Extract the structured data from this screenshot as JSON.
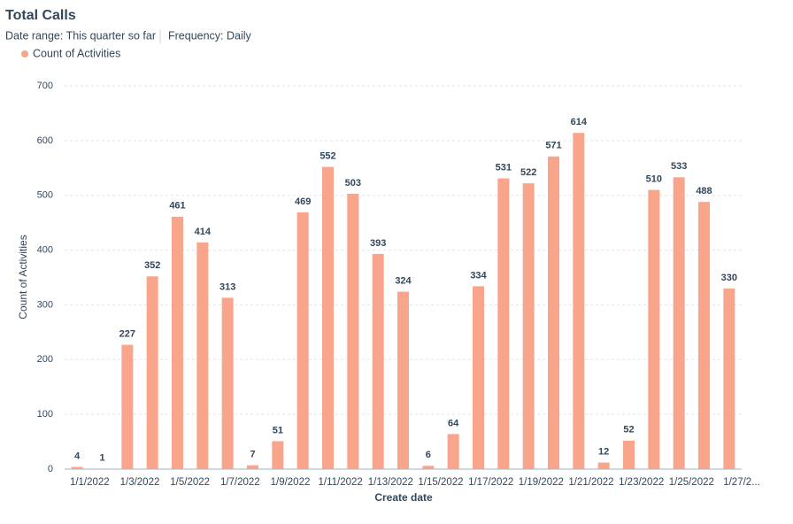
{
  "chart_data": {
    "type": "bar",
    "title": "Total Calls",
    "subtitle": [
      "Date range: This quarter so far",
      "Frequency: Daily"
    ],
    "xlabel": "Create date",
    "ylabel": "Count of Activities",
    "categories": [
      "1/1/2022",
      null,
      "1/3/2022",
      null,
      "1/5/2022",
      null,
      "1/7/2022",
      null,
      "1/9/2022",
      null,
      "1/11/2022",
      null,
      "1/13/2022",
      null,
      "1/15/2022",
      null,
      "1/17/2022",
      null,
      "1/19/2022",
      null,
      "1/21/2022",
      null,
      "1/23/2022",
      null,
      "1/25/2022",
      null,
      "1/27/2..."
    ],
    "series": [
      {
        "name": "Count of Activities",
        "color": "#f8a58c",
        "values": [
          4,
          1,
          227,
          352,
          461,
          414,
          313,
          7,
          51,
          469,
          552,
          503,
          393,
          324,
          6,
          64,
          334,
          531,
          522,
          571,
          614,
          12,
          52,
          510,
          533,
          488,
          330
        ]
      }
    ],
    "ylim": [
      0,
      700
    ],
    "yticks": [
      0,
      100,
      200,
      300,
      400,
      500,
      600,
      700
    ],
    "grid": true
  }
}
